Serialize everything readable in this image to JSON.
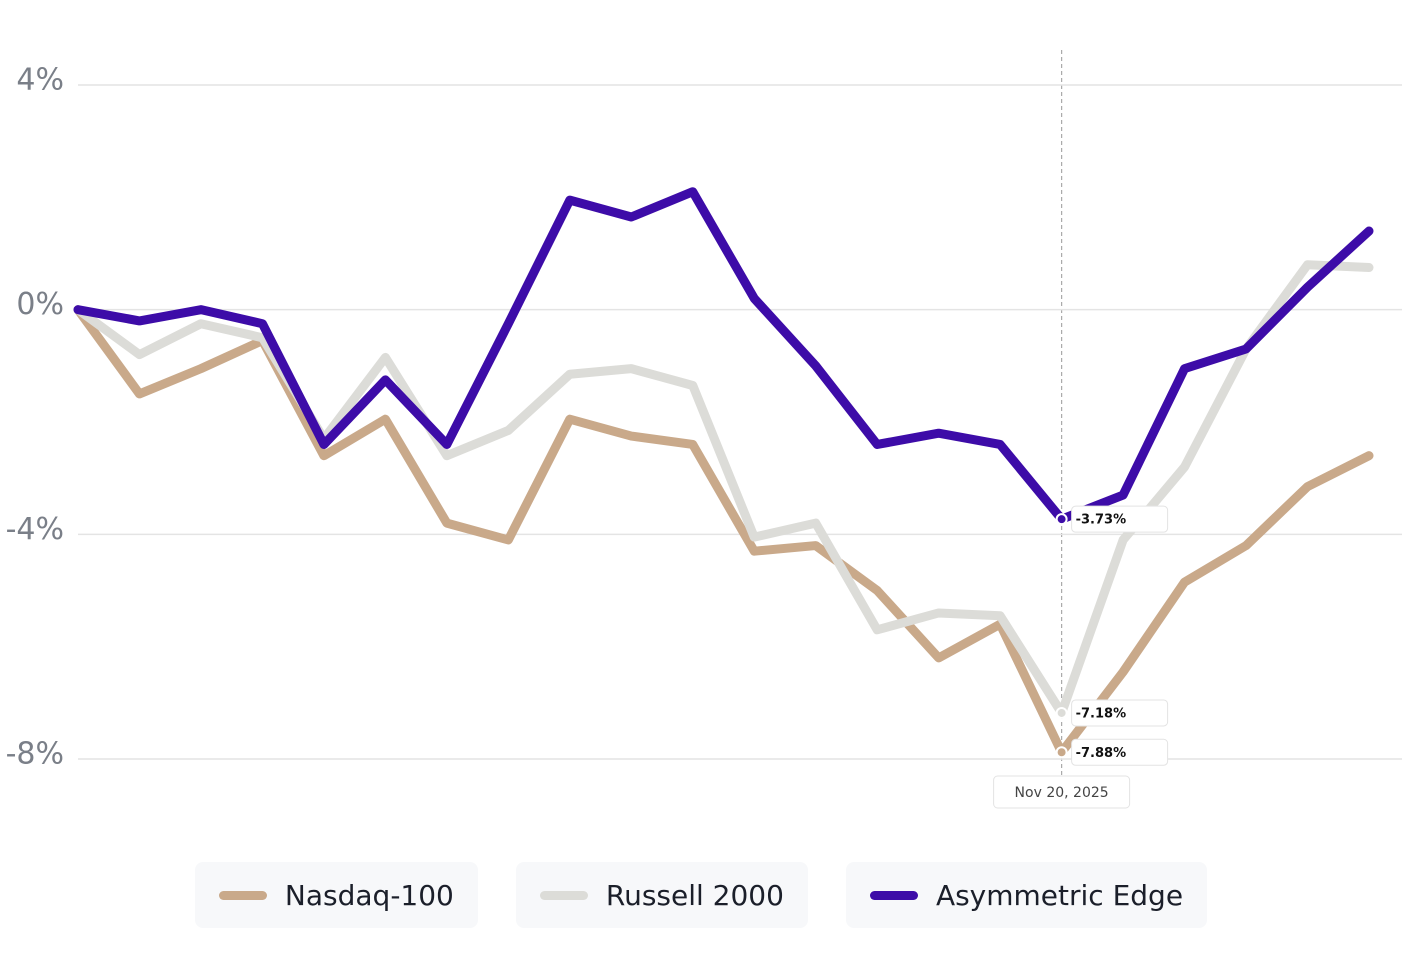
{
  "chart_data": {
    "type": "line",
    "categories": [
      null,
      null,
      null,
      null,
      null,
      null,
      null,
      null,
      null,
      null,
      null,
      null,
      null,
      null,
      null,
      null,
      "Nov 20, 2025",
      null,
      null,
      null,
      null,
      null
    ],
    "series": [
      {
        "name": "Nasdaq-100",
        "color": "#c9a98a",
        "values": [
          0,
          -1.5,
          -1.05,
          -0.55,
          -2.6,
          -1.95,
          -3.8,
          -4.1,
          -1.95,
          -2.25,
          -2.4,
          -4.3,
          -4.2,
          -5.0,
          -6.2,
          -5.6,
          -7.88,
          -6.45,
          -4.85,
          -4.2,
          -3.15,
          -2.6
        ],
        "value_labels": [
          null,
          null,
          null,
          null,
          null,
          null,
          null,
          null,
          null,
          null,
          null,
          null,
          null,
          null,
          null,
          null,
          "-7.88%",
          null,
          null,
          null,
          null,
          null
        ]
      },
      {
        "name": "Russell 2000",
        "color": "#dcdcd8",
        "values": [
          0,
          -0.8,
          -0.25,
          -0.5,
          -2.3,
          -0.85,
          -2.6,
          -2.15,
          -1.15,
          -1.05,
          -1.35,
          -4.05,
          -3.8,
          -5.7,
          -5.4,
          -5.45,
          -7.18,
          -4.1,
          -2.8,
          -0.7,
          0.8,
          0.75
        ],
        "value_labels": [
          null,
          null,
          null,
          null,
          null,
          null,
          null,
          null,
          null,
          null,
          null,
          null,
          null,
          null,
          null,
          null,
          "-7.18%",
          null,
          null,
          null,
          null,
          null
        ]
      },
      {
        "name": "Asymmetric Edge",
        "color": "#3d0ca8",
        "values": [
          0,
          -0.2,
          0,
          -0.25,
          -2.4,
          -1.25,
          -2.4,
          -0.25,
          1.95,
          1.65,
          2.1,
          0.2,
          -1.0,
          -2.4,
          -2.2,
          -2.4,
          -3.73,
          -3.3,
          -1.05,
          -0.7,
          0.4,
          1.4
        ],
        "value_labels": [
          null,
          null,
          null,
          null,
          null,
          null,
          null,
          null,
          null,
          null,
          null,
          null,
          null,
          null,
          null,
          null,
          "-3.73%",
          null,
          null,
          null,
          null,
          null
        ]
      }
    ],
    "ylim": [
      -8,
      4
    ],
    "yticks": [
      {
        "value": 4,
        "label": "4%"
      },
      {
        "value": 0,
        "label": "0%"
      },
      {
        "value": -4,
        "label": "-4%"
      },
      {
        "value": -8,
        "label": "-8%"
      }
    ],
    "grid": true
  }
}
